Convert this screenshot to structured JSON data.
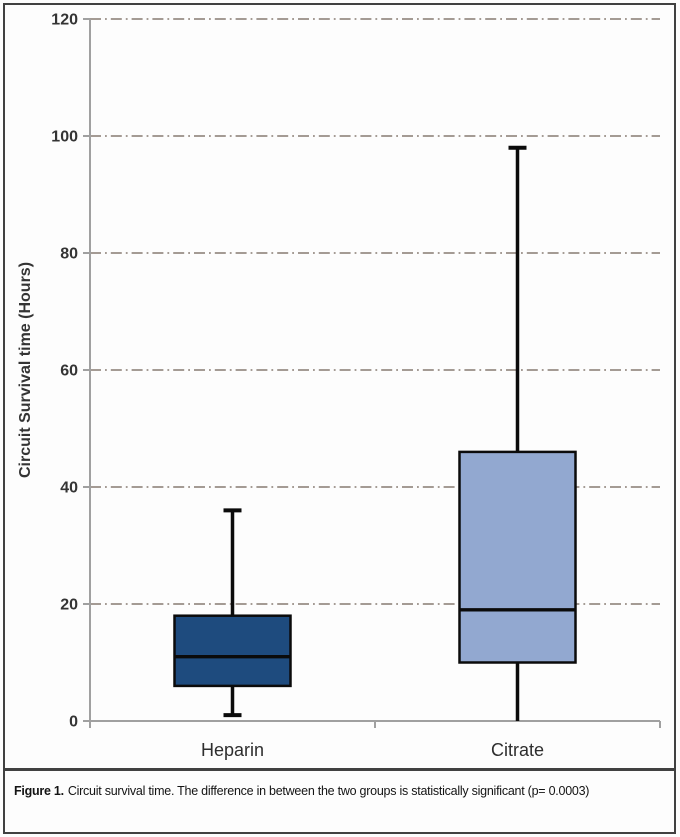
{
  "caption": {
    "label": "Figure 1.",
    "text": "Circuit survival time. The difference in between the two groups is statistically significant (p= 0.0003)"
  },
  "chart_data": {
    "type": "boxplot",
    "title": "",
    "xlabel": "",
    "ylabel": "Circuit Survival time (Hours)",
    "ylim": [
      0,
      120
    ],
    "yticks": [
      0,
      20,
      40,
      60,
      80,
      100,
      120
    ],
    "grid": {
      "show": true,
      "orientation": "horizontal",
      "style": "dash-dot"
    },
    "legend": {
      "show": false
    },
    "categories": [
      "Heparin",
      "Citrate"
    ],
    "series": [
      {
        "name": "Heparin",
        "whisker_low": 1,
        "q1": 6,
        "median": 11,
        "q3": 18,
        "whisker_high": 36,
        "fill": "#1E4B7E",
        "cap_low": true,
        "cap_high": true
      },
      {
        "name": "Citrate",
        "whisker_low": 0,
        "q1": 10,
        "median": 19,
        "q3": 46,
        "whisker_high": 98,
        "fill": "#92A8D0",
        "cap_low": false,
        "cap_high": true
      }
    ],
    "colors": {
      "axis": "#A0A0A0",
      "grid": "#A49B94",
      "tick_text": "#343434",
      "axis_title_text": "#343434",
      "category_text": "#2E2E2E",
      "box_stroke": "#0B0B0B",
      "whisker": "#0B0B0B",
      "frame": "#414141"
    }
  }
}
